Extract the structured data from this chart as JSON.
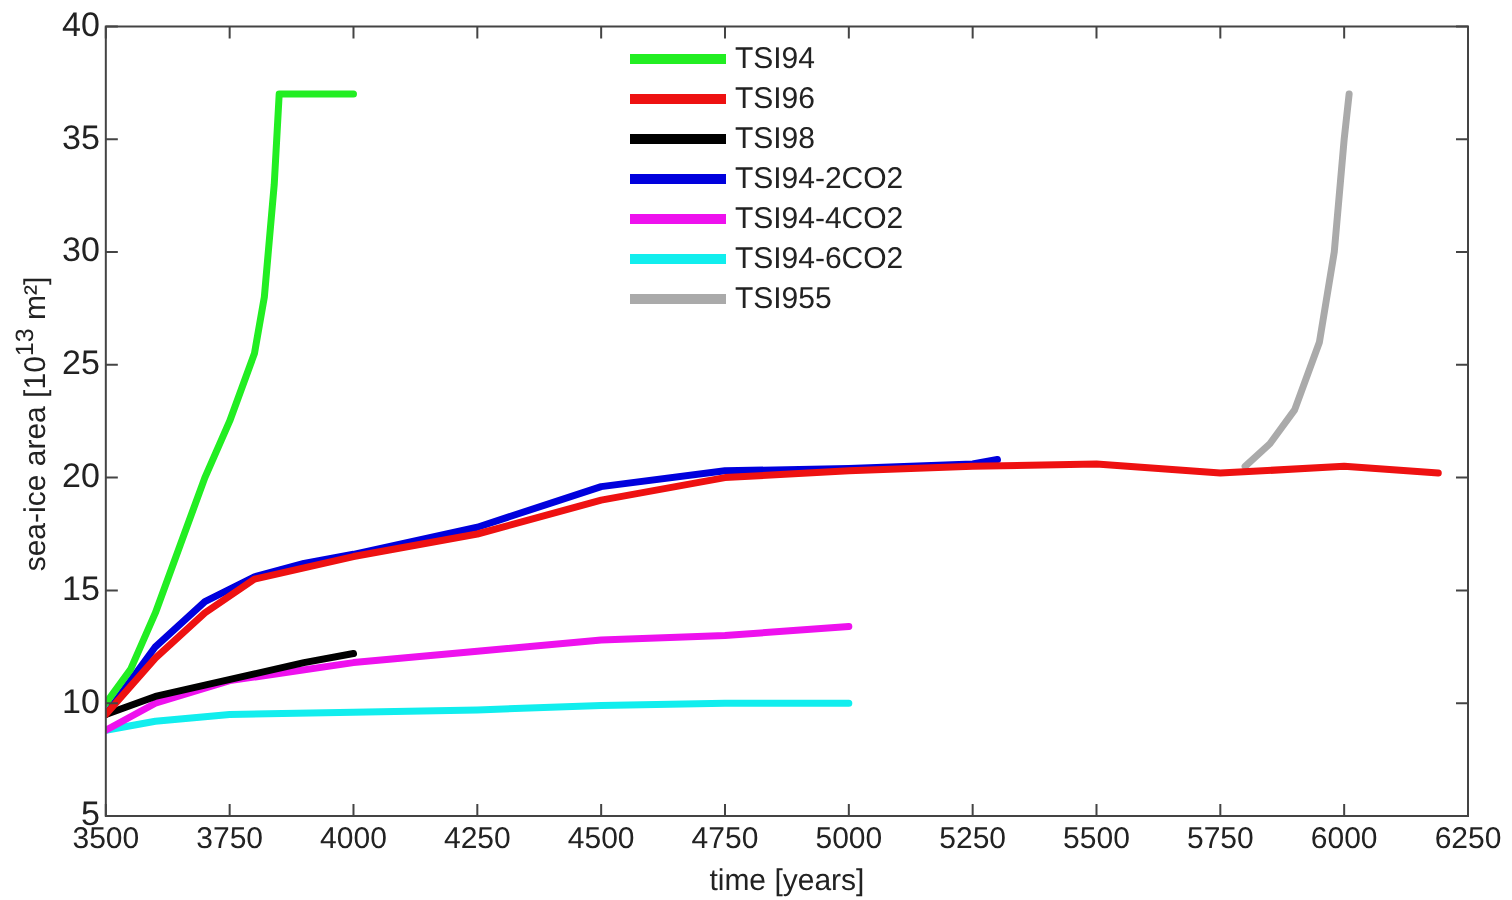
{
  "chart_data": {
    "type": "line",
    "xlabel": "time [years]",
    "ylabel": "sea-ice area [10$^{13}$ m²]",
    "xlim": [
      3500,
      6250
    ],
    "xticks": [
      3500,
      3750,
      4000,
      4250,
      4500,
      4750,
      5000,
      5250,
      5500,
      5750,
      6000,
      6250
    ],
    "ylim": [
      5,
      40
    ],
    "yticks": [
      5,
      10,
      15,
      20,
      25,
      30,
      35,
      40
    ],
    "grid": false,
    "legend": "top",
    "line_style": "solid",
    "marker": "none",
    "series": [
      {
        "name": "TSI94",
        "color": "#22ee22",
        "x": [
          3500,
          3550,
          3600,
          3650,
          3700,
          3750,
          3800,
          3820,
          3840,
          3850,
          3860,
          3900,
          4000
        ],
        "values": [
          10,
          11.5,
          14,
          17,
          20,
          22.5,
          25.5,
          28,
          33,
          37,
          37,
          37,
          37
        ]
      },
      {
        "name": "TSI96",
        "color": "#ee1111",
        "x": [
          3500,
          3600,
          3700,
          3800,
          3900,
          4000,
          4250,
          4500,
          4750,
          5000,
          5250,
          5500,
          5750,
          6000,
          6190
        ],
        "values": [
          9.5,
          12,
          14,
          15.5,
          16,
          16.5,
          17.5,
          19,
          20,
          20.3,
          20.5,
          20.6,
          20.2,
          20.5,
          20.2
        ]
      },
      {
        "name": "TSI98",
        "color": "#000000",
        "x": [
          3500,
          3600,
          3700,
          3800,
          3900,
          4000
        ],
        "values": [
          9.5,
          10.3,
          10.8,
          11.3,
          11.8,
          12.2
        ]
      },
      {
        "name": "TSI94-2CO2",
        "color": "#0000dd",
        "x": [
          3500,
          3600,
          3700,
          3800,
          3900,
          4000,
          4250,
          4500,
          4750,
          5000,
          5250,
          5300
        ],
        "values": [
          9.5,
          12.5,
          14.5,
          15.6,
          16.2,
          16.6,
          17.8,
          19.6,
          20.3,
          20.4,
          20.6,
          20.8
        ]
      },
      {
        "name": "TSI94-4CO2",
        "color": "#ee11ee",
        "x": [
          3500,
          3600,
          3750,
          4000,
          4250,
          4500,
          4750,
          5000
        ],
        "values": [
          8.8,
          10,
          11,
          11.8,
          12.3,
          12.8,
          13,
          13.4
        ]
      },
      {
        "name": "TSI94-6CO2",
        "color": "#11eeee",
        "x": [
          3500,
          3600,
          3750,
          4000,
          4250,
          4500,
          4750,
          5000
        ],
        "values": [
          8.8,
          9.2,
          9.5,
          9.6,
          9.7,
          9.9,
          10,
          10
        ]
      },
      {
        "name": "TSI955",
        "color": "#aaaaaa",
        "x": [
          5800,
          5850,
          5900,
          5950,
          5980,
          6000,
          6010
        ],
        "values": [
          20.5,
          21.5,
          23,
          26,
          30,
          35,
          37
        ]
      }
    ]
  }
}
